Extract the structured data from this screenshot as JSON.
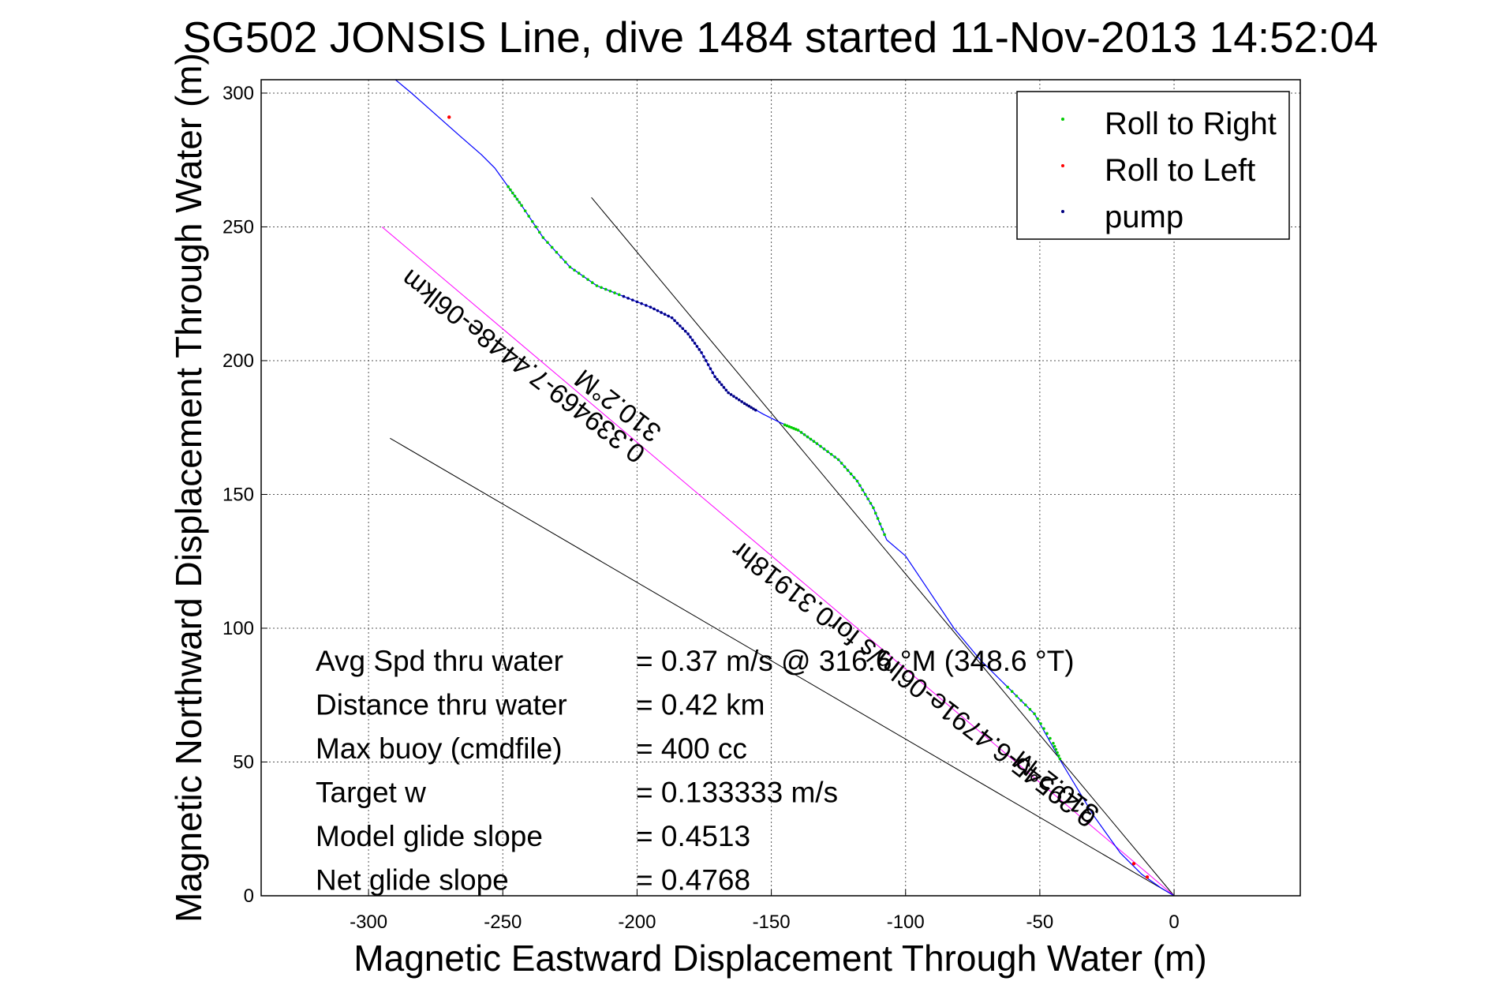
{
  "chart_data": {
    "type": "line",
    "title": "SG502 JONSIS Line, dive 1484 started 11-Nov-2013 14:52:04",
    "xlabel": "Magnetic Eastward Displacement Through Water (m)",
    "ylabel": "Magnetic Northward Displacement Through Water (m)",
    "xlim": [
      -340,
      47
    ],
    "ylim": [
      0,
      305
    ],
    "xticks": [
      -300,
      -250,
      -200,
      -150,
      -100,
      -50,
      0
    ],
    "yticks": [
      0,
      50,
      100,
      150,
      200,
      250,
      300
    ],
    "grid": true,
    "legend_position": "top-right",
    "colors": {
      "track": "#0000ff",
      "roll_right": "#00cc00",
      "roll_left": "#ff0000",
      "pump": "#000080",
      "guide": "#000000",
      "avg": "#ff00ff"
    },
    "legend": [
      {
        "label": "Roll to Right",
        "color": "#00cc00"
      },
      {
        "label": "Roll to Left",
        "color": "#ff0000"
      },
      {
        "label": "pump",
        "color": "#000080"
      }
    ],
    "track": {
      "x": [
        0,
        -5,
        -12,
        -20,
        -30,
        -42,
        -52,
        -62,
        -72,
        -82,
        -92,
        -100,
        -107,
        -112,
        -118,
        -125,
        -133,
        -140,
        -147,
        -153,
        -160,
        -166,
        -171,
        -176,
        -181,
        -187,
        -195,
        -205,
        -215,
        -225,
        -235,
        -243,
        -248,
        -253,
        -258,
        -266,
        -275,
        -284,
        -290
      ],
      "y": [
        0,
        3,
        8,
        16,
        30,
        50,
        68,
        78,
        88,
        100,
        115,
        127,
        133,
        145,
        155,
        163,
        169,
        174,
        177,
        180,
        184,
        188,
        194,
        203,
        210,
        216,
        220,
        224,
        228,
        235,
        246,
        258,
        265,
        272,
        277,
        284,
        292,
        300,
        305
      ]
    },
    "roll_right_segments": [
      {
        "x": [
          -248,
          -243,
          -235,
          -225,
          -215,
          -205
        ],
        "y": [
          265,
          258,
          246,
          235,
          228,
          224
        ]
      },
      {
        "x": [
          -145,
          -140,
          -133,
          -125,
          -118,
          -112,
          -107
        ],
        "y": [
          176,
          174,
          169,
          163,
          155,
          145,
          133
        ]
      },
      {
        "x": [
          -62,
          -52,
          -45,
          -42
        ],
        "y": [
          78,
          68,
          57,
          50
        ]
      }
    ],
    "roll_left_points": {
      "x": [
        -270,
        -15,
        -10
      ],
      "y": [
        291,
        12,
        7
      ]
    },
    "pump_segment": {
      "x": [
        -205,
        -195,
        -187,
        -181,
        -176,
        -171,
        -166,
        -160,
        -155
      ],
      "y": [
        224,
        220,
        216,
        210,
        203,
        194,
        188,
        184,
        181
      ]
    },
    "guide_lines": [
      {
        "x": [
          -217,
          0
        ],
        "y": [
          261,
          0
        ]
      },
      {
        "x": [
          -292,
          0
        ],
        "y": [
          171,
          0
        ]
      }
    ],
    "avg_line": {
      "x": [
        -295,
        0
      ],
      "y": [
        250,
        0
      ]
    },
    "annotations": {
      "diag_upper": "0.339469-7.4448e-06lkm",
      "diag_upper2": "310.2°M",
      "diag_lower": "0.29545-6.4791e-06lm/s for0.31918hr",
      "diag_lower2": "310.2°M"
    },
    "stats": [
      {
        "label": "Avg Spd thru water",
        "value": "=  0.37 m/s @ 316.6 °M (348.6 °T)"
      },
      {
        "label": "Distance thru water",
        "value": "=  0.42 km"
      },
      {
        "label": "Max buoy (cmdfile)",
        "value": "= 400 cc"
      },
      {
        "label": "Target w",
        "value": "= 0.133333 m/s"
      },
      {
        "label": "Model glide slope",
        "value": "= 0.4513"
      },
      {
        "label": "Net glide slope",
        "value": "= 0.4768"
      }
    ]
  }
}
